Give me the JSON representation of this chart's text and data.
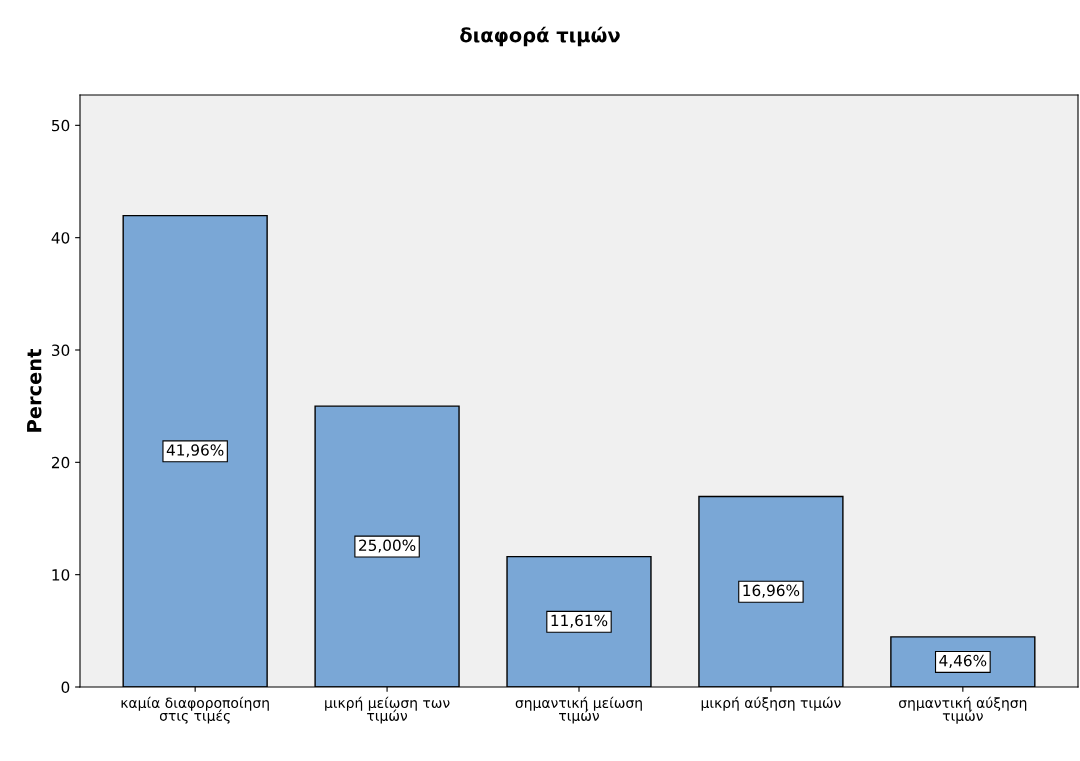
{
  "chart_data": {
    "type": "bar",
    "title": "διαφορά τιμών",
    "ylabel": "Percent",
    "categories": [
      "καμία διαφοροποίηση στις τιμές",
      "μικρή μείωση των τιμών",
      "σημαντική μείωση τιμών",
      "μικρή αύξηση τιμών",
      "σημαντική αύξηση τιμών"
    ],
    "values": [
      41.96,
      25.0,
      11.61,
      16.96,
      4.46
    ],
    "value_labels": [
      "41,96%",
      "25,00%",
      "11,61%",
      "16,96%",
      "4,46%"
    ],
    "color": "#7aa7d6",
    "ylim": [
      0,
      52.7
    ],
    "yticks": [
      0,
      10,
      20,
      30,
      40,
      50
    ],
    "grid": false,
    "legend": false
  }
}
